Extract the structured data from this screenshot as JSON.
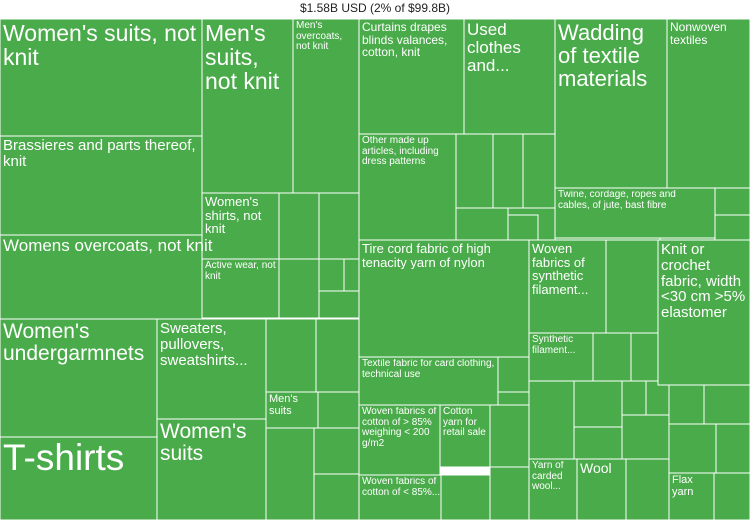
{
  "chart_data": {
    "type": "treemap",
    "title": "$1.58B USD (2% of $99.8B)",
    "fill_color": "#4aab4a",
    "border_color": "#ffffff",
    "labeled_tiles": [
      {
        "id": "womens-suits-knit",
        "label": "Women's suits, not knit"
      },
      {
        "id": "mens-suits-not-knit",
        "label": "Men's suits, not knit"
      },
      {
        "id": "mens-overcoats",
        "label": "Men's overcoats, not knit"
      },
      {
        "id": "curtains",
        "label": "Curtains drapes blinds valances, cotton, knit"
      },
      {
        "id": "used-clothes",
        "label": "Used clothes and..."
      },
      {
        "id": "wadding",
        "label": "Wadding of textile materials"
      },
      {
        "id": "nonwoven",
        "label": "Nonwoven textiles"
      },
      {
        "id": "brassieres",
        "label": "Brassieres and parts thereof, knit"
      },
      {
        "id": "other-made-up",
        "label": "Other made up articles, including dress patterns"
      },
      {
        "id": "twine",
        "label": "Twine, cordage, ropes and cables, of jute, bast fibre"
      },
      {
        "id": "womens-shirts",
        "label": "Women's shirts, not knit"
      },
      {
        "id": "womens-overcoats",
        "label": "Womens overcoats, not knit"
      },
      {
        "id": "active-wear",
        "label": "Active wear, not knit"
      },
      {
        "id": "tire-cord",
        "label": "Tire cord fabric of high tenacity yarn of nylon"
      },
      {
        "id": "woven-synthetic",
        "label": "Woven fabrics of synthetic filament..."
      },
      {
        "id": "knit-crochet",
        "label": "Knit or crochet fabric, width <30 cm >5% elastomer"
      },
      {
        "id": "womens-undergarments",
        "label": "Women's undergarmnets"
      },
      {
        "id": "sweaters",
        "label": "Sweaters, pullovers, sweatshirts..."
      },
      {
        "id": "synthetic-filament",
        "label": "Synthetic filament..."
      },
      {
        "id": "textile-card-clothing",
        "label": "Textile fabric for card clothing, technical use"
      },
      {
        "id": "mens-suits",
        "label": "Men's suits"
      },
      {
        "id": "woven-cotton-85",
        "label": "Woven fabrics of cotton of > 85% weighing < 200 g/m2"
      },
      {
        "id": "cotton-yarn",
        "label": "Cotton yarn for retail sale"
      },
      {
        "id": "womens-suits",
        "label": "Women's suits"
      },
      {
        "id": "t-shirts",
        "label": "T-shirts"
      },
      {
        "id": "yarn-carded-wool",
        "label": "Yarn of carded wool..."
      },
      {
        "id": "wool",
        "label": "Wool"
      },
      {
        "id": "woven-cotton-lt85",
        "label": "Woven fabrics of cotton of < 85%..."
      },
      {
        "id": "flax-yarn",
        "label": "Flax yarn"
      }
    ]
  }
}
